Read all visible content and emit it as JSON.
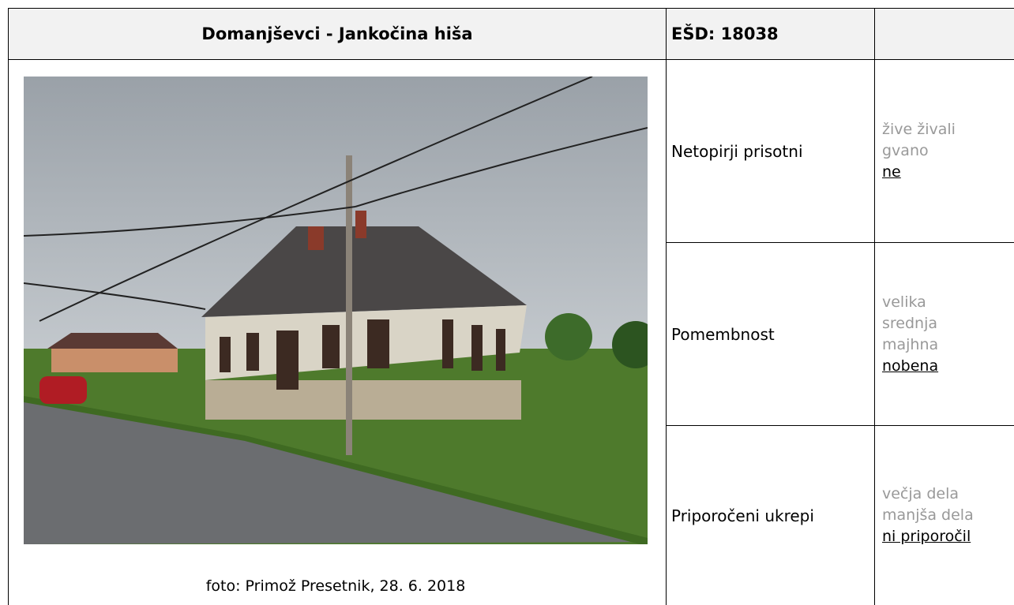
{
  "header": {
    "title": "Domanjševci - Jankočina hiša",
    "code": "EŠD: 18038"
  },
  "photo": {
    "caption": "foto: Primož Presetnik, 28. 6. 2018"
  },
  "rows": [
    {
      "label": "Netopirji prisotni",
      "options": [
        {
          "text": "žive živali",
          "selected": false
        },
        {
          "text": "gvano",
          "selected": false
        },
        {
          "text": "ne",
          "selected": true
        }
      ]
    },
    {
      "label": "Pomembnost",
      "options": [
        {
          "text": "velika",
          "selected": false
        },
        {
          "text": "srednja",
          "selected": false
        },
        {
          "text": "majhna",
          "selected": false
        },
        {
          "text": "nobena",
          "selected": true
        }
      ]
    },
    {
      "label": "Priporočeni ukrepi",
      "options": [
        {
          "text": "večja dela",
          "selected": false
        },
        {
          "text": "manjša dela",
          "selected": false
        },
        {
          "text": "ni priporočil",
          "selected": true
        }
      ]
    }
  ]
}
